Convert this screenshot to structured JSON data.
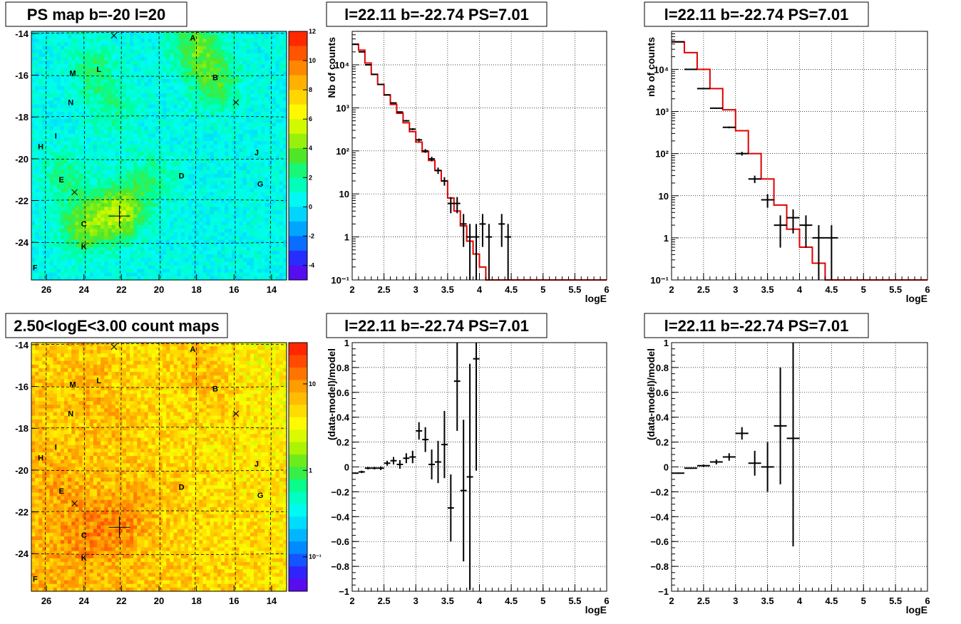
{
  "chart_data": [
    {
      "panel": "top-left",
      "type": "heatmap",
      "title": "PS map b=-20 l=20",
      "x_ticks": [
        "26",
        "24",
        "22",
        "20",
        "18",
        "16",
        "14"
      ],
      "x_tick_values": [
        26,
        24,
        22,
        20,
        18,
        16,
        14
      ],
      "xlim": [
        26.8,
        13.2
      ],
      "y_ticks": [
        "-14",
        "-16",
        "-18",
        "-20",
        "-22",
        "-24"
      ],
      "y_tick_values": [
        -14,
        -16,
        -18,
        -20,
        -22,
        -24
      ],
      "ylim": [
        -25.8,
        -13.9
      ],
      "z_ticks": [
        "12",
        "10",
        "8",
        "6",
        "4",
        "2",
        "0",
        "-2",
        "-4"
      ],
      "z_tick_values": [
        12,
        10,
        8,
        6,
        4,
        2,
        0,
        -2,
        -4
      ],
      "zlim": [
        -5,
        12
      ],
      "grid": "dashed",
      "sources": [
        {
          "label": "A",
          "l": 18.2,
          "b": -14.2
        },
        {
          "label": "B",
          "l": 17.0,
          "b": -16.1
        },
        {
          "label": "M",
          "l": 24.6,
          "b": -15.9
        },
        {
          "label": "L",
          "l": 23.2,
          "b": -15.7
        },
        {
          "label": "N",
          "l": 24.7,
          "b": -17.3
        },
        {
          "label": "I",
          "l": 25.5,
          "b": -18.9
        },
        {
          "label": "H",
          "l": 26.3,
          "b": -19.4
        },
        {
          "label": "J",
          "l": 14.8,
          "b": -19.7
        },
        {
          "label": "E",
          "l": 25.2,
          "b": -21.0
        },
        {
          "label": "D",
          "l": 18.8,
          "b": -20.8
        },
        {
          "label": "G",
          "l": 14.6,
          "b": -21.2
        },
        {
          "label": "C",
          "l": 24.0,
          "b": -23.1
        },
        {
          "label": "K",
          "l": 24.0,
          "b": -24.2
        },
        {
          "label": "F",
          "l": 26.6,
          "b": -25.2
        }
      ],
      "x_markers": [
        {
          "l": 22.4,
          "b": -14.1
        },
        {
          "l": 15.9,
          "b": -17.3
        },
        {
          "l": 24.5,
          "b": -21.6
        }
      ],
      "plus_marker": {
        "l": 22.11,
        "b": -22.74
      }
    },
    {
      "panel": "top-middle",
      "type": "line",
      "title": "l=22.11 b=-22.74 PS=7.01",
      "xlabel": "logE",
      "ylabel": "Nb of counts",
      "yscale": "log",
      "xlim": [
        2,
        6
      ],
      "ylim": [
        0.1,
        60000
      ],
      "x_ticks": [
        "2",
        "2.5",
        "3",
        "3.5",
        "4",
        "4.5",
        "5",
        "5.5",
        "6"
      ],
      "x_tick_values": [
        2,
        2.5,
        3,
        3.5,
        4,
        4.5,
        5,
        5.5,
        6
      ],
      "y_ticks": [
        "10⁻¹",
        "1",
        "10",
        "10²",
        "10³",
        "10⁴"
      ],
      "y_tick_values": [
        0.1,
        1,
        10,
        100,
        1000,
        10000
      ],
      "grid": true,
      "data": {
        "x": [
          2.05,
          2.15,
          2.25,
          2.35,
          2.45,
          2.55,
          2.65,
          2.75,
          2.85,
          2.95,
          3.05,
          3.15,
          3.25,
          3.35,
          3.45,
          3.55,
          3.65,
          3.75,
          3.85,
          3.95,
          4.05,
          4.15,
          4.35,
          4.45
        ],
        "y": [
          30000,
          20000,
          10000,
          6000,
          3500,
          2000,
          1300,
          800,
          500,
          320,
          180,
          100,
          65,
          35,
          20,
          6,
          6,
          2,
          1,
          1,
          2,
          1,
          2,
          1
        ]
      },
      "model": {
        "edges": [
          2.0,
          2.1,
          2.2,
          2.3,
          2.4,
          2.5,
          2.6,
          2.7,
          2.8,
          2.9,
          3.0,
          3.1,
          3.2,
          3.3,
          3.4,
          3.5,
          3.6,
          3.7,
          3.8,
          3.9,
          4.0,
          4.1,
          4.2,
          6.0
        ],
        "values": [
          30000,
          22000,
          11000,
          6000,
          3500,
          2000,
          1200,
          750,
          450,
          280,
          160,
          95,
          60,
          35,
          20,
          8,
          4,
          1.8,
          0.8,
          0.4,
          0.2,
          0.1,
          0.1
        ]
      }
    },
    {
      "panel": "top-right",
      "type": "line",
      "title": "l=22.11 b=-22.74 PS=7.01",
      "xlabel": "logE",
      "ylabel": "nb of counts",
      "yscale": "log",
      "xlim": [
        2,
        6
      ],
      "ylim": [
        0.1,
        80000
      ],
      "x_ticks": [
        "2",
        "2.5",
        "3",
        "3.5",
        "4",
        "4.5",
        "5",
        "5.5",
        "6"
      ],
      "x_tick_values": [
        2,
        2.5,
        3,
        3.5,
        4,
        4.5,
        5,
        5.5,
        6
      ],
      "y_ticks": [
        "10⁻¹",
        "1",
        "10",
        "10²",
        "10³",
        "10⁴"
      ],
      "y_tick_values": [
        0.1,
        1,
        10,
        100,
        1000,
        10000
      ],
      "grid": true,
      "data": {
        "x": [
          2.1,
          2.3,
          2.5,
          2.7,
          2.9,
          3.1,
          3.3,
          3.5,
          3.7,
          3.9,
          4.1,
          4.3,
          4.5
        ],
        "y": [
          45000,
          10000,
          3500,
          1200,
          420,
          100,
          25,
          8,
          2,
          3,
          2,
          1,
          1
        ]
      },
      "model": {
        "edges": [
          2.0,
          2.2,
          2.4,
          2.6,
          2.8,
          3.0,
          3.2,
          3.4,
          3.6,
          3.8,
          4.0,
          4.2,
          4.4,
          6.0
        ],
        "values": [
          45000,
          25000,
          10000,
          3500,
          1100,
          350,
          100,
          25,
          6,
          1.6,
          0.6,
          0.25,
          0.1
        ]
      }
    },
    {
      "panel": "bottom-left",
      "type": "heatmap",
      "title": "2.50<logE<3.00 count maps",
      "x_ticks": [
        "26",
        "24",
        "22",
        "20",
        "18",
        "16",
        "14"
      ],
      "x_tick_values": [
        26,
        24,
        22,
        20,
        18,
        16,
        14
      ],
      "xlim": [
        26.8,
        13.2
      ],
      "y_ticks": [
        "-14",
        "-16",
        "-18",
        "-20",
        "-22",
        "-24"
      ],
      "y_tick_values": [
        -14,
        -16,
        -18,
        -20,
        -22,
        -24
      ],
      "ylim": [
        -25.8,
        -13.9
      ],
      "z_ticks": [
        "10",
        "1",
        "10⁻¹"
      ],
      "z_tick_values": [
        10,
        1,
        0.1
      ],
      "zscale": "log",
      "zlim": [
        0.04,
        30
      ],
      "grid": "dashed"
    },
    {
      "panel": "bottom-middle",
      "type": "scatter",
      "title": "l=22.11 b=-22.74 PS=7.01",
      "xlabel": "logE",
      "ylabel": "(data-model)/model",
      "xlim": [
        2,
        6
      ],
      "ylim": [
        -1,
        1
      ],
      "x_ticks": [
        "2",
        "2.5",
        "3",
        "3.5",
        "4",
        "4.5",
        "5",
        "5.5",
        "6"
      ],
      "x_tick_values": [
        2,
        2.5,
        3,
        3.5,
        4,
        4.5,
        5,
        5.5,
        6
      ],
      "y_ticks": [
        "−1",
        "−0.8",
        "−0.6",
        "−0.4",
        "−0.2",
        "0",
        "0.2",
        "0.4",
        "0.6",
        "0.8",
        "1"
      ],
      "y_tick_values": [
        -1,
        -0.8,
        -0.6,
        -0.4,
        -0.2,
        0,
        0.2,
        0.4,
        0.6,
        0.8,
        1
      ],
      "grid": true,
      "data": {
        "x": [
          2.05,
          2.15,
          2.25,
          2.35,
          2.45,
          2.55,
          2.65,
          2.75,
          2.85,
          2.95,
          3.05,
          3.15,
          3.25,
          3.35,
          3.45,
          3.55,
          3.65,
          3.75,
          3.85,
          3.95
        ],
        "y": [
          -0.05,
          -0.04,
          -0.01,
          -0.01,
          -0.01,
          0.03,
          0.05,
          0.02,
          0.07,
          0.08,
          0.29,
          0.22,
          0.02,
          0.04,
          0.18,
          -0.33,
          0.69,
          -0.19,
          -0.08,
          0.87
        ],
        "err": [
          0.005,
          0.01,
          0.01,
          0.01,
          0.015,
          0.02,
          0.03,
          0.035,
          0.04,
          0.05,
          0.07,
          0.1,
          0.12,
          0.17,
          0.27,
          0.27,
          0.4,
          0.57,
          0.91,
          0.9
        ]
      }
    },
    {
      "panel": "bottom-right",
      "type": "scatter",
      "title": "l=22.11 b=-22.74 PS=7.01",
      "xlabel": "logE",
      "ylabel": "(data-model)/model",
      "xlim": [
        2,
        6
      ],
      "ylim": [
        -1,
        1
      ],
      "x_ticks": [
        "2",
        "2.5",
        "3",
        "3.5",
        "4",
        "4.5",
        "5",
        "5.5",
        "6"
      ],
      "x_tick_values": [
        2,
        2.5,
        3,
        3.5,
        4,
        4.5,
        5,
        5.5,
        6
      ],
      "y_ticks": [
        "−1",
        "−0.8",
        "−0.6",
        "−0.4",
        "−0.2",
        "0",
        "0.2",
        "0.4",
        "0.6",
        "0.8",
        "1"
      ],
      "y_tick_values": [
        -1,
        -0.8,
        -0.6,
        -0.4,
        -0.2,
        0,
        0.2,
        0.4,
        0.6,
        0.8,
        1
      ],
      "grid": true,
      "data": {
        "x": [
          2.1,
          2.3,
          2.5,
          2.7,
          2.9,
          3.1,
          3.3,
          3.5,
          3.7,
          3.9
        ],
        "y": [
          -0.05,
          -0.01,
          0.01,
          0.04,
          0.08,
          0.27,
          0.03,
          0.0,
          0.33,
          0.23
        ],
        "err": [
          0.005,
          0.005,
          0.01,
          0.02,
          0.03,
          0.05,
          0.1,
          0.2,
          0.47,
          0.87
        ]
      }
    }
  ]
}
